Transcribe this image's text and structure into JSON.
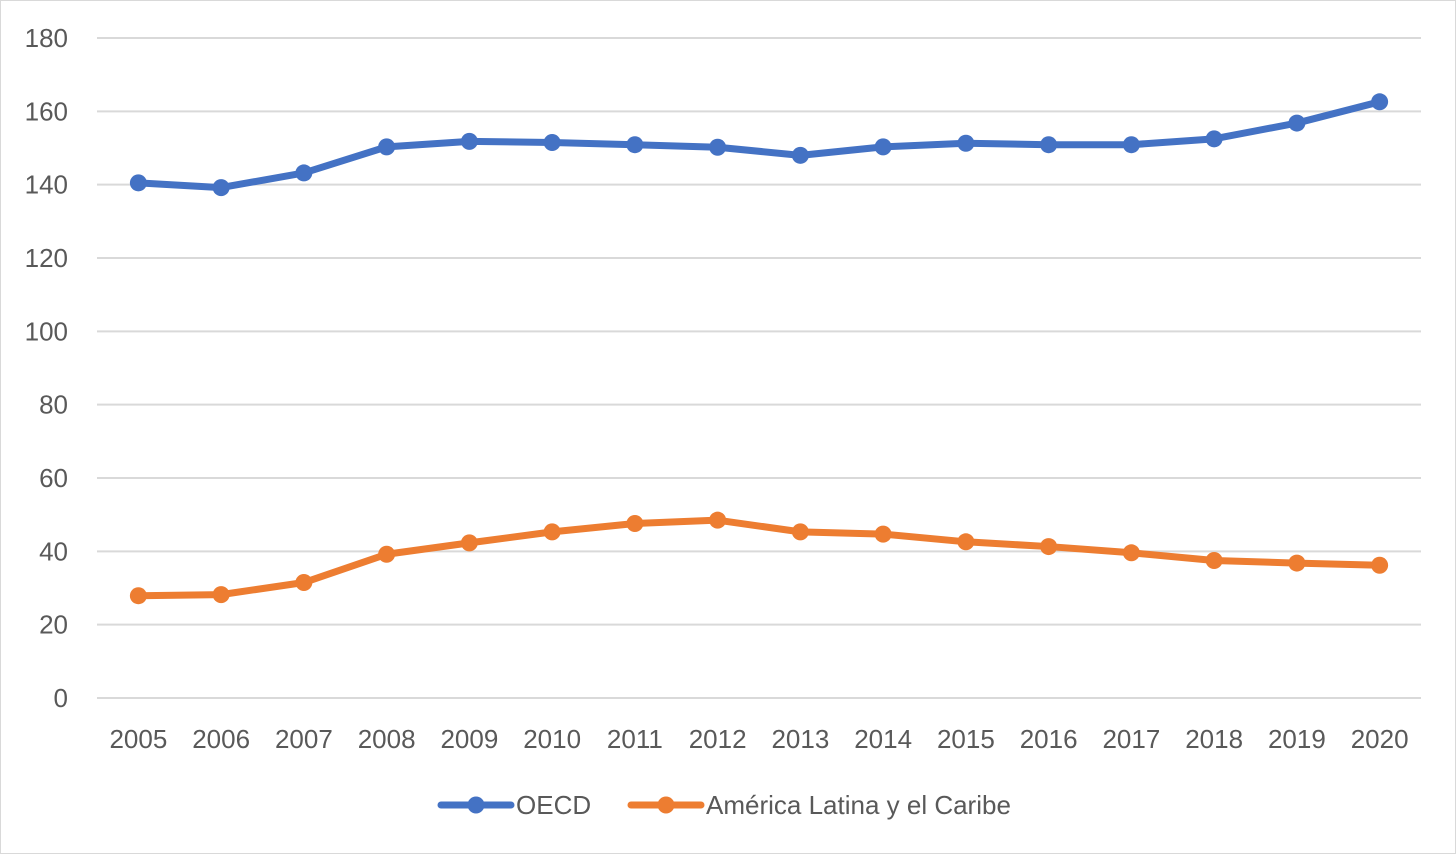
{
  "chart_data": {
    "type": "line",
    "title": "",
    "xlabel": "",
    "ylabel": "",
    "categories": [
      "2005",
      "2006",
      "2007",
      "2008",
      "2009",
      "2010",
      "2011",
      "2012",
      "2013",
      "2014",
      "2015",
      "2016",
      "2017",
      "2018",
      "2019",
      "2020"
    ],
    "ylim": [
      0,
      180
    ],
    "yticks": [
      0,
      20,
      40,
      60,
      80,
      100,
      120,
      140,
      160,
      180
    ],
    "grid": true,
    "legend_position": "bottom",
    "series": [
      {
        "name": "OECD",
        "color": "#4472C4",
        "values": [
          140.5,
          139.2,
          143.2,
          150.3,
          151.8,
          151.5,
          150.9,
          150.2,
          148.0,
          150.3,
          151.3,
          150.9,
          150.9,
          152.5,
          156.8,
          162.6
        ]
      },
      {
        "name": "América Latina y el Caribe",
        "color": "#ED7D31",
        "values": [
          27.9,
          28.2,
          31.5,
          39.2,
          42.3,
          45.3,
          47.6,
          48.5,
          45.3,
          44.7,
          42.6,
          41.3,
          39.6,
          37.5,
          36.8,
          36.2
        ]
      }
    ]
  }
}
